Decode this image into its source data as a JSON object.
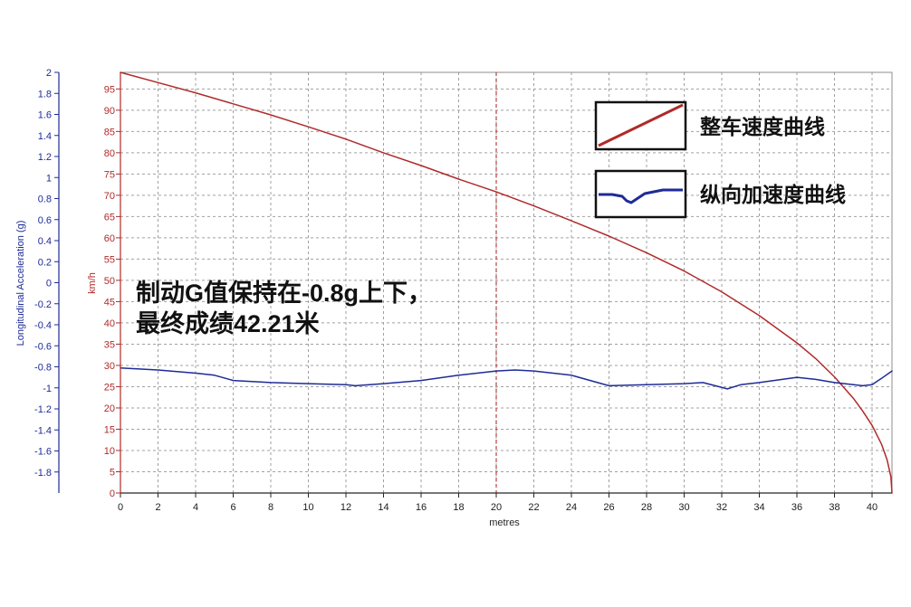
{
  "chart_data": {
    "type": "line",
    "xlabel": "metres",
    "xlim": [
      0,
      41.06
    ],
    "x_ticks": [
      0,
      2,
      4,
      6,
      8,
      10,
      12,
      14,
      16,
      18,
      20,
      22,
      24,
      26,
      28,
      30,
      32,
      34,
      36,
      38,
      40
    ],
    "grid": true,
    "cursor": {
      "x": 20,
      "color": "#a81e1e"
    },
    "legend": {
      "position": "top-right"
    },
    "series": [
      {
        "name": "整车速度曲线",
        "color": "#b02a2a",
        "y_axis": {
          "label": "km/h",
          "ylim": [
            0,
            98.9
          ],
          "ticks": [
            95,
            90,
            85,
            80,
            75,
            70,
            65,
            60,
            55,
            50,
            45,
            40,
            35,
            30,
            25,
            20,
            15,
            10,
            5,
            0
          ]
        },
        "x": [
          0,
          2,
          4,
          6,
          8,
          10,
          12,
          14,
          16,
          18,
          20,
          22,
          24,
          26,
          28,
          30,
          32,
          34,
          36,
          37,
          38,
          39,
          39.5,
          40,
          40.5,
          40.8,
          41,
          41.06
        ],
        "y": [
          98.9,
          96.5,
          94.1,
          91.5,
          88.9,
          86.1,
          83.2,
          80.0,
          77.0,
          73.8,
          70.8,
          67.5,
          64.0,
          60.4,
          56.5,
          52.2,
          47.3,
          41.7,
          35.3,
          31.6,
          27.3,
          22.3,
          19.3,
          15.9,
          11.5,
          7.8,
          3.8,
          0
        ]
      },
      {
        "name": "纵向加速度曲线",
        "color": "#1e2b96",
        "y_axis": {
          "label": "Longitudinal Acceleration (g)",
          "ylim": [
            -2,
            2
          ],
          "ticks": [
            2,
            1.8,
            1.6,
            1.4,
            1.2,
            1,
            0.8,
            0.6,
            0.4,
            0.2,
            0,
            -0.2,
            -0.4,
            -0.6,
            -0.8,
            -1,
            -1.2,
            -1.4,
            -1.6,
            -1.8
          ]
        },
        "x": [
          0,
          2,
          4,
          5,
          6,
          8,
          10,
          12,
          12.5,
          14,
          16,
          18,
          20,
          21,
          22,
          24,
          25,
          26,
          28,
          30,
          31,
          32.3,
          33,
          34,
          36,
          37,
          38,
          39.5,
          40,
          40.5,
          41.06
        ],
        "y": [
          -0.81,
          -0.83,
          -0.86,
          -0.88,
          -0.93,
          -0.95,
          -0.96,
          -0.97,
          -0.98,
          -0.96,
          -0.93,
          -0.88,
          -0.84,
          -0.83,
          -0.84,
          -0.88,
          -0.93,
          -0.98,
          -0.97,
          -0.96,
          -0.95,
          -1.01,
          -0.97,
          -0.95,
          -0.9,
          -0.92,
          -0.95,
          -0.98,
          -0.97,
          -0.91,
          -0.84
        ]
      }
    ],
    "annotations": [
      "制动G值保持在-0.8g上下，",
      "最终成绩42.21米"
    ]
  }
}
